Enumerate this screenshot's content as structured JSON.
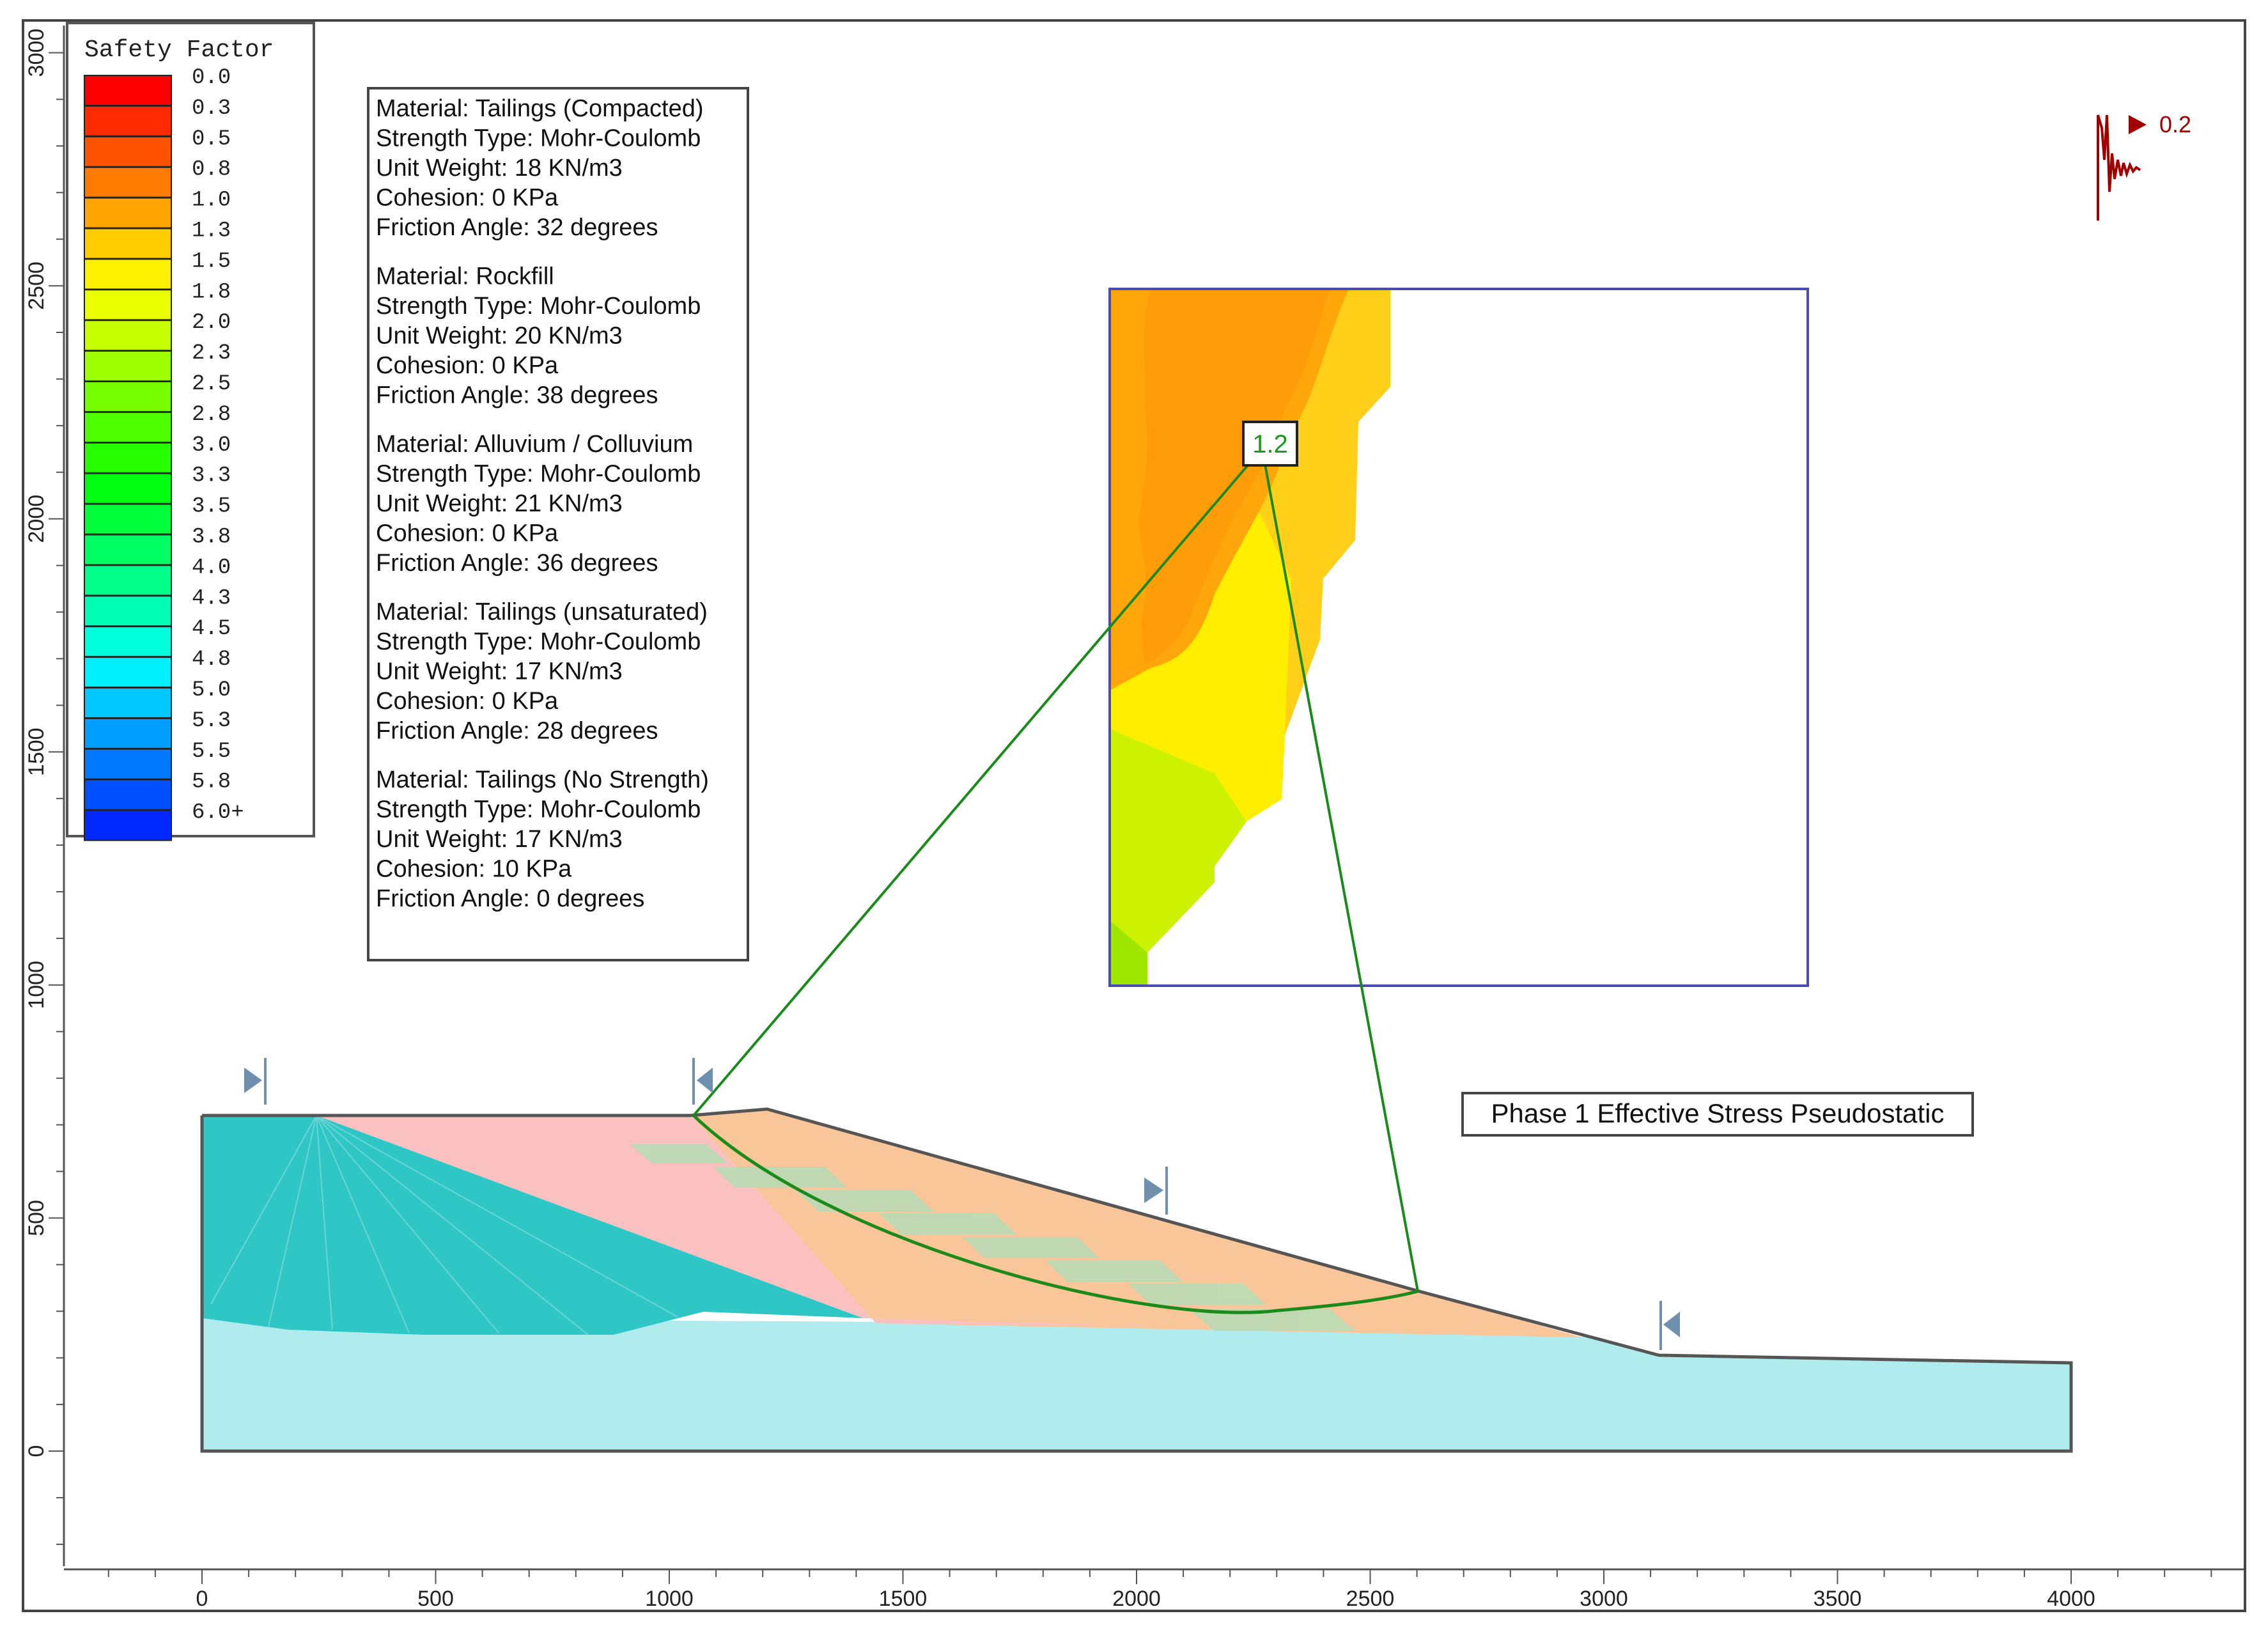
{
  "colors": {
    "frame": "#444444",
    "tailings_compacted": "#f9c699",
    "rockfill": "#fbc0c0",
    "alluvium": "#b0eced",
    "tailings_unsat": "#2fc6c6",
    "slip": "#1a8a1a",
    "sf_text": "#1a9a1a",
    "seismic": "#a00000",
    "zoom_border": "#4b4bb5",
    "support": "#6f8faf"
  },
  "legend": {
    "title": "Safety Factor",
    "labels": [
      "0.0",
      "0.3",
      "0.5",
      "0.8",
      "1.0",
      "1.3",
      "1.5",
      "1.8",
      "2.0",
      "2.3",
      "2.5",
      "2.8",
      "3.0",
      "3.3",
      "3.5",
      "3.8",
      "4.0",
      "4.3",
      "4.5",
      "4.8",
      "5.0",
      "5.3",
      "5.5",
      "5.8",
      "6.0+"
    ],
    "colors": [
      "#ff0000",
      "#ff2a00",
      "#ff5300",
      "#ff7a00",
      "#ffa400",
      "#ffcc00",
      "#fff200",
      "#e9ff00",
      "#c6ff00",
      "#9dff00",
      "#77ff00",
      "#4dff00",
      "#25ff00",
      "#00ff10",
      "#00ff3a",
      "#00ff62",
      "#00ff8a",
      "#00ffb3",
      "#00ffdc",
      "#00f0ff",
      "#00c8ff",
      "#009fff",
      "#0078ff",
      "#0050ff",
      "#0028ff"
    ]
  },
  "materials_box": {
    "materials": [
      {
        "lines": [
          "Material: Tailings (Compacted)",
          "Strength Type: Mohr-Coulomb",
          "Unit Weight: 18 KN/m3",
          "Cohesion: 0 KPa",
          "Friction Angle: 32 degrees"
        ]
      },
      {
        "lines": [
          "Material: Rockfill",
          "Strength Type: Mohr-Coulomb",
          "Unit Weight: 20 KN/m3",
          "Cohesion: 0 KPa",
          "Friction Angle: 38 degrees"
        ]
      },
      {
        "lines": [
          "Material: Alluvium / Colluvium",
          "Strength Type: Mohr-Coulomb",
          "Unit Weight: 21 KN/m3",
          "Cohesion: 0 KPa",
          "Friction Angle: 36 degrees"
        ]
      },
      {
        "lines": [
          "Material: Tailings (unsaturated)",
          "Strength Type: Mohr-Coulomb",
          "Unit Weight: 17 KN/m3",
          "Cohesion: 0 KPa",
          "Friction Angle: 28 degrees"
        ]
      },
      {
        "lines": [
          "Material: Tailings (No Strength)",
          "Strength Type: Mohr-Coulomb",
          "Unit Weight: 17 KN/m3",
          "Cohesion: 10 KPa",
          "Friction Angle: 0 degrees"
        ]
      }
    ]
  },
  "x_axis": {
    "ticks": [
      0,
      500,
      1000,
      1500,
      2000,
      2500,
      3000,
      3500,
      4000
    ]
  },
  "y_axis": {
    "ticks": [
      0,
      500,
      1000,
      1500,
      2000,
      2500,
      3000
    ]
  },
  "safety_factor_label": "1.2",
  "seismic_coefficient": "0.2",
  "analysis_label": "Phase 1 Effective Stress Pseudostatic"
}
